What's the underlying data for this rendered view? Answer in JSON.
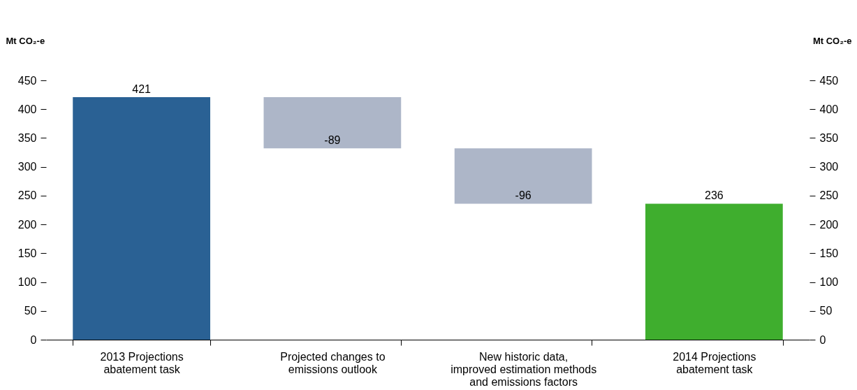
{
  "chart_data": {
    "type": "bar",
    "categories": [
      "2013 Projections abatement task",
      "Projected changes to emissions outlook",
      "New historic data, improved estimation methods and emissions factors",
      "2014 Projections abatement task"
    ],
    "values": [
      421,
      -89,
      -96,
      236
    ],
    "base": [
      0,
      421,
      332,
      0
    ],
    "colors": [
      "#2a6194",
      "#adb6c8",
      "#adb6c8",
      "#3fae2e"
    ],
    "data_labels": true,
    "ylabel": "Mt CO₂-e",
    "y2label": "Mt CO₂-e",
    "ylim": [
      0,
      450
    ],
    "yticks": [
      0,
      50,
      100,
      150,
      200,
      250,
      300,
      350,
      400,
      450
    ],
    "y2lim": [
      0,
      450
    ],
    "y2ticks": [
      0,
      50,
      100,
      150,
      200,
      250,
      300,
      350,
      400,
      450
    ],
    "grid": false
  }
}
